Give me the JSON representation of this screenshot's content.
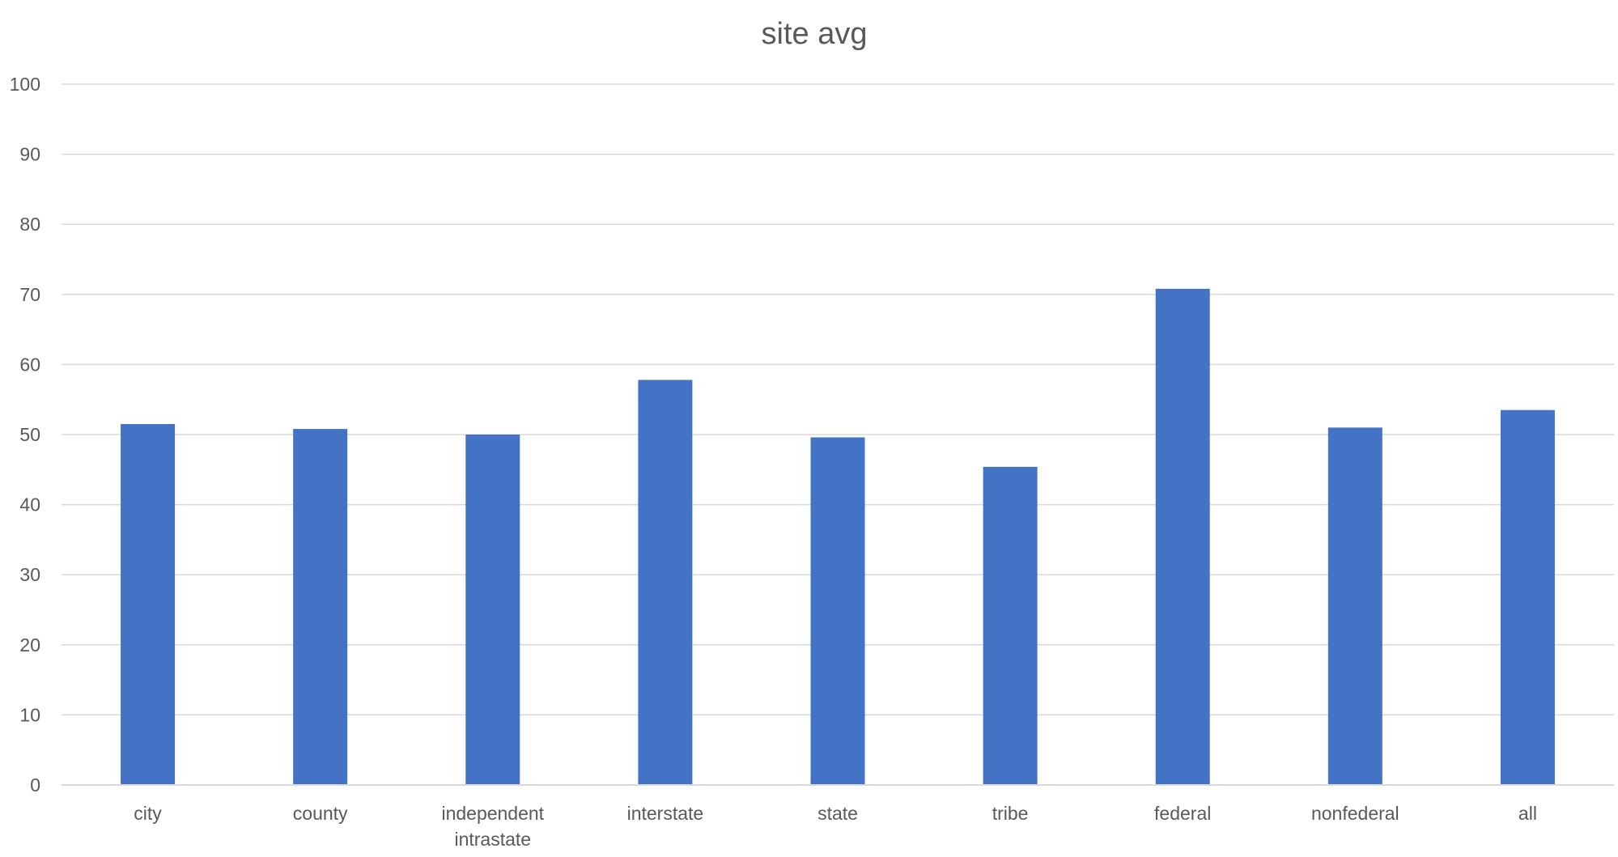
{
  "chart_data": {
    "type": "bar",
    "title": "site avg",
    "xlabel": "",
    "ylabel": "",
    "categories": [
      "city",
      "county",
      "independent intrastate",
      "interstate",
      "state",
      "tribe",
      "federal",
      "nonfederal",
      "all"
    ],
    "category_lines": [
      [
        "city"
      ],
      [
        "county"
      ],
      [
        "independent",
        "intrastate"
      ],
      [
        "interstate"
      ],
      [
        "state"
      ],
      [
        "tribe"
      ],
      [
        "federal"
      ],
      [
        "nonfederal"
      ],
      [
        "all"
      ]
    ],
    "values": [
      51.5,
      50.8,
      50.0,
      57.8,
      49.6,
      45.4,
      70.8,
      51.0,
      53.5
    ],
    "ylim": [
      0,
      100
    ],
    "yticks": [
      0,
      10,
      20,
      30,
      40,
      50,
      60,
      70,
      80,
      90,
      100
    ],
    "grid": true,
    "legend": "none",
    "bar_color": "#4472C4"
  }
}
